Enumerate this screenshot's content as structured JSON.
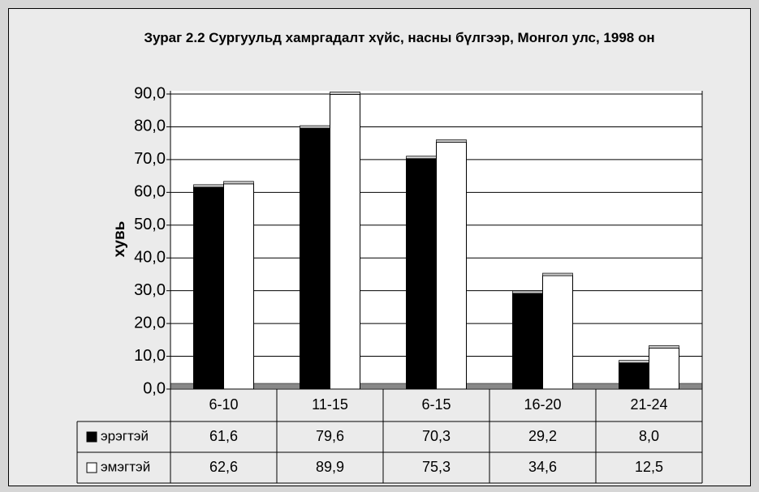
{
  "chart_data": {
    "type": "bar",
    "title": "Зураг 2.2 Сургуульд хамргадалт хүйс, насны бүлгээр, Монгол улс, 1998 он",
    "ylabel": "хувь",
    "categories": [
      "6-10",
      "11-15",
      "6-15",
      "16-20",
      "21-24"
    ],
    "series": [
      {
        "name": "эрэгтэй",
        "color": "#000000",
        "values": [
          61.6,
          79.6,
          70.3,
          29.2,
          8.0
        ],
        "value_labels": [
          "61,6",
          "79,6",
          "70,3",
          "29,2",
          "8,0"
        ]
      },
      {
        "name": "эмэгтэй",
        "color": "#ffffff",
        "values": [
          62.6,
          89.9,
          75.3,
          34.6,
          12.5
        ],
        "value_labels": [
          "62,6",
          "89,9",
          "75,3",
          "34,6",
          "12,5"
        ]
      }
    ],
    "ylim": [
      0,
      90
    ],
    "yticks": [
      {
        "value": 0,
        "label": "0,0"
      },
      {
        "value": 10,
        "label": "10,0"
      },
      {
        "value": 20,
        "label": "20,0"
      },
      {
        "value": 30,
        "label": "30,0"
      },
      {
        "value": 40,
        "label": "40,0"
      },
      {
        "value": 50,
        "label": "50,0"
      },
      {
        "value": 60,
        "label": "60,0"
      },
      {
        "value": 70,
        "label": "70,0"
      },
      {
        "value": 80,
        "label": "80,0"
      },
      {
        "value": 90,
        "label": "90,0"
      }
    ],
    "grid": true
  }
}
